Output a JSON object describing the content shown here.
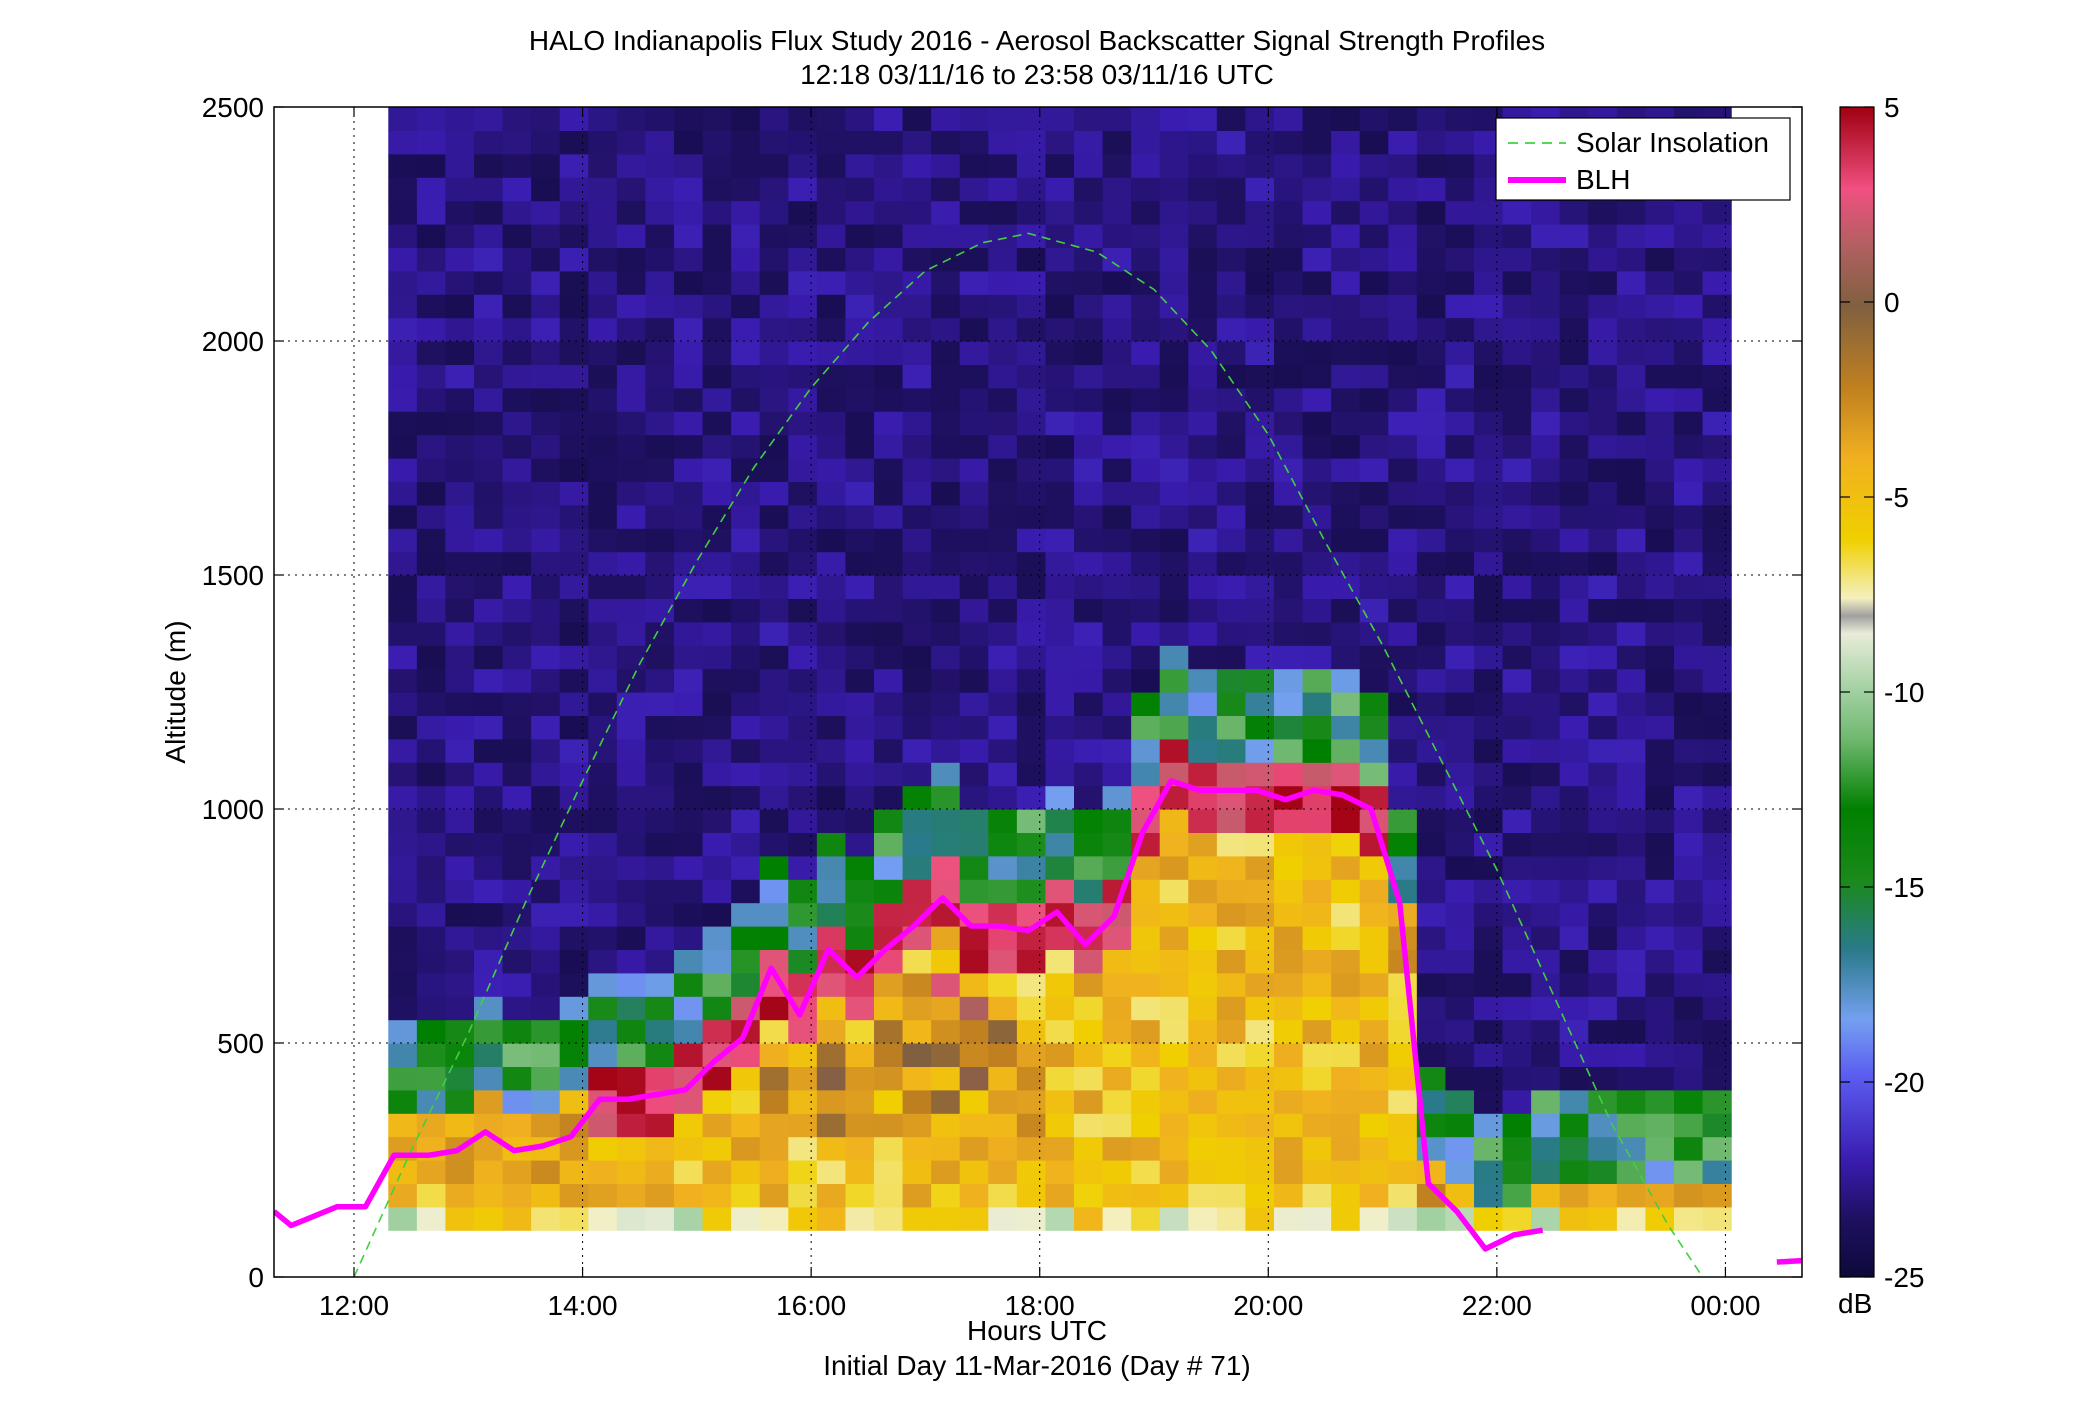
{
  "figure": {
    "title_line1": "HALO Indianapolis Flux Study 2016 - Aerosol Backscatter Signal Strength Profiles",
    "title_line2": "12:18 03/11/16 to 23:58 03/11/16  UTC",
    "footer": "Initial Day 11-Mar-2016 (Day # 71)"
  },
  "chart_data": {
    "type": "heatmap",
    "xlabel": "Hours UTC",
    "ylabel": "Altitude (m)",
    "xlim": [
      11.3,
      24.67
    ],
    "ylim": [
      0,
      2500
    ],
    "x_ticks": [
      12,
      14,
      16,
      18,
      20,
      22,
      24
    ],
    "x_tick_labels": [
      "12:00",
      "14:00",
      "16:00",
      "18:00",
      "20:00",
      "22:00",
      "00:00"
    ],
    "y_ticks": [
      0,
      500,
      1000,
      1500,
      2000,
      2500
    ],
    "y_tick_labels": [
      "0",
      "500",
      "1000",
      "1500",
      "2000",
      "2500"
    ],
    "grid": true,
    "legend_position": "top-right",
    "colorbar": {
      "unit_label": "dB",
      "range": [
        -25,
        5
      ],
      "ticks": [
        5,
        0,
        -5,
        -10,
        -15,
        -20,
        -25
      ],
      "tick_labels": [
        "5",
        "0",
        "-5",
        "-10",
        "-15",
        "-20",
        "-25"
      ],
      "colors": [
        "#0c0a3a",
        "#2a1478",
        "#3b1cc0",
        "#5a5af0",
        "#74a0f0",
        "#2a7a8a",
        "#1a8a1a",
        "#008000",
        "#60b060",
        "#a0d0a0",
        "#e8ecd8",
        "#b0b0b0",
        "#f8f0b0",
        "#f0d000",
        "#f0b020",
        "#c08020",
        "#806040",
        "#b06060",
        "#f05080",
        "#c00020",
        "#a00010"
      ]
    },
    "heatmap_summary": {
      "x_range": [
        12.3,
        23.97
      ],
      "altitude_range": [
        100,
        2500
      ],
      "cell_height_m": 50,
      "cell_width_h": 0.25,
      "background_dB": -23
    },
    "series": [
      {
        "name": "Solar Insolation",
        "style": "dashed",
        "color": "#40d040",
        "x": [
          12.0,
          12.5,
          13.0,
          13.5,
          14.0,
          14.5,
          15.0,
          15.5,
          16.0,
          16.5,
          17.0,
          17.5,
          17.9,
          18.5,
          19.0,
          19.5,
          20.0,
          20.5,
          21.0,
          21.5,
          22.0,
          22.5,
          23.0,
          23.5,
          23.8
        ],
        "y": [
          0,
          270,
          520,
          800,
          1060,
          1310,
          1530,
          1730,
          1900,
          2040,
          2150,
          2210,
          2230,
          2190,
          2110,
          1980,
          1800,
          1570,
          1350,
          1110,
          870,
          600,
          330,
          110,
          0
        ]
      },
      {
        "name": "BLH",
        "style": "solid",
        "color": "#ff00ff",
        "x": [
          11.3,
          11.45,
          11.65,
          11.85,
          12.1,
          12.35,
          12.65,
          12.9,
          13.15,
          13.4,
          13.65,
          13.9,
          14.15,
          14.4,
          14.65,
          14.9,
          15.15,
          15.4,
          15.65,
          15.9,
          16.15,
          16.4,
          16.65,
          16.9,
          17.15,
          17.4,
          17.65,
          17.9,
          18.15,
          18.4,
          18.65,
          18.9,
          19.15,
          19.4,
          19.65,
          19.9,
          20.15,
          20.4,
          20.65,
          20.9,
          21.15,
          21.4,
          21.65,
          21.9,
          22.15,
          22.4,
          22.65,
          22.9,
          23.15,
          23.4,
          23.65,
          23.9,
          24.15
        ],
        "y": [
          140,
          110,
          130,
          150,
          150,
          260,
          260,
          270,
          310,
          270,
          280,
          300,
          380,
          380,
          390,
          400,
          460,
          510,
          660,
          560,
          700,
          640,
          700,
          750,
          810,
          750,
          750,
          740,
          780,
          710,
          770,
          950,
          1060,
          1040,
          1040,
          1040,
          1020,
          1040,
          1030,
          1000,
          800,
          200,
          140,
          60,
          90,
          100,
          null,
          null,
          null,
          null,
          null,
          null,
          null
        ]
      }
    ]
  }
}
